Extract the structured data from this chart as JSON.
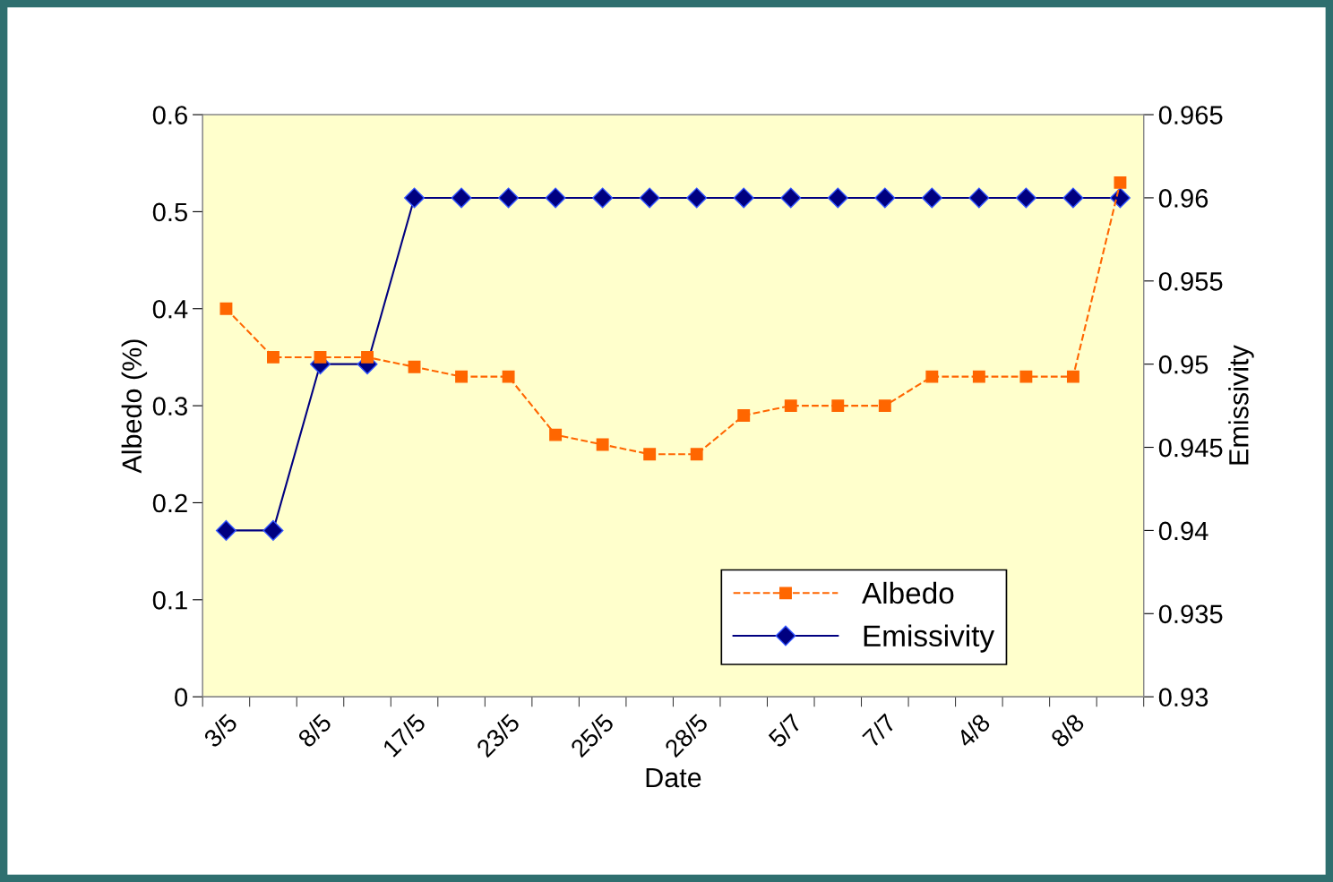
{
  "chart_data": {
    "type": "line",
    "xlabel": "Date",
    "ylabel": "Albedo (%)",
    "y2label": "Emissivity",
    "categories": [
      "3/5",
      null,
      "8/5",
      null,
      "17/5",
      null,
      "23/5",
      null,
      "25/5",
      null,
      "28/5",
      null,
      "5/7",
      null,
      "7/7",
      null,
      "4/8",
      null,
      "8/8",
      null
    ],
    "series": [
      {
        "name": "Albedo",
        "color": "#ff6600",
        "marker": "square",
        "line_style": "dashed",
        "values": [
          0.4,
          0.35,
          0.35,
          0.35,
          0.34,
          0.33,
          0.33,
          0.27,
          0.26,
          0.25,
          0.25,
          0.29,
          0.3,
          0.3,
          0.3,
          0.33,
          0.33,
          0.33,
          0.33,
          0.53
        ]
      },
      {
        "name": "Emissivity",
        "color": "#000080",
        "marker": "diamond",
        "line_style": "solid",
        "axis": "y2",
        "values": [
          0.94,
          0.94,
          0.95,
          0.95,
          0.96,
          0.96,
          0.96,
          0.96,
          0.96,
          0.96,
          0.96,
          0.96,
          0.96,
          0.96,
          0.96,
          0.96,
          0.96,
          0.96,
          0.96,
          0.96
        ]
      }
    ],
    "ylim": [
      0,
      0.6
    ],
    "yticks": [
      0,
      0.1,
      0.2,
      0.3,
      0.4,
      0.5,
      0.6
    ],
    "y2lim": [
      0.93,
      0.965
    ],
    "y2ticks": [
      0.93,
      0.935,
      0.94,
      0.945,
      0.95,
      0.955,
      0.96,
      0.965
    ],
    "grid": false,
    "legend": "bottom right"
  }
}
